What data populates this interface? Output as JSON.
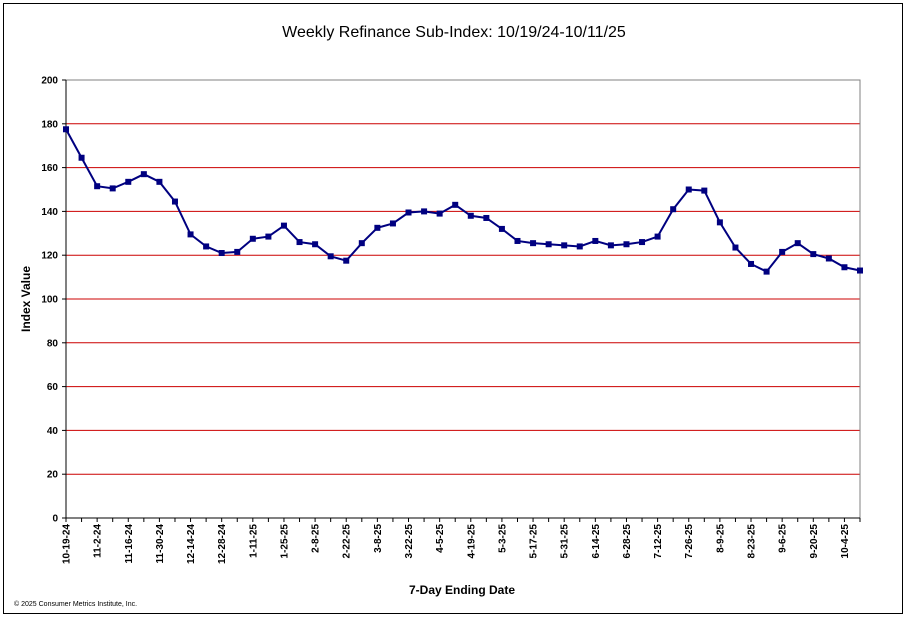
{
  "chart_data": {
    "type": "line",
    "title": "Weekly Refinance Sub-Index: 10/19/24-10/11/25",
    "xlabel": "7-Day Ending Date",
    "ylabel": "Index Value",
    "ylim": [
      0,
      200
    ],
    "y_ticks": [
      0,
      20,
      40,
      60,
      80,
      100,
      120,
      140,
      160,
      180,
      200
    ],
    "grid": true,
    "line_color": "#000080",
    "grid_color": "#cc0000",
    "x_tick_labels": [
      "10-19-24",
      "11-2-24",
      "11-16-24",
      "11-30-24",
      "12-14-24",
      "12-28-24",
      "1-11-25",
      "1-25-25",
      "2-8-25",
      "2-22-25",
      "3-8-25",
      "3-22-25",
      "4-5-25",
      "4-19-25",
      "5-3-25",
      "5-17-25",
      "5-31-25",
      "6-14-25",
      "6-28-25",
      "7-12-25",
      "7-26-25",
      "8-9-25",
      "8-23-25",
      "9-6-25",
      "9-20-25",
      "10-4-25"
    ],
    "series": [
      {
        "values": [
          177.5,
          164.5,
          151.5,
          150.5,
          153.5,
          157,
          153.5,
          144.5,
          129.5,
          124,
          121,
          121.5,
          127.5,
          128.5,
          133.5,
          126,
          125,
          119.5,
          117.5,
          125.5,
          132.5,
          134.5,
          139.5,
          140,
          139,
          143,
          138,
          137,
          132,
          126.5,
          125.5,
          125,
          124.5,
          124,
          126.5,
          124.5,
          125,
          126,
          128.5,
          141,
          150,
          149.5,
          135,
          123.5,
          116,
          112.5,
          121.5,
          125.5,
          120.5,
          118.5,
          114.5,
          113
        ]
      }
    ]
  },
  "copyright": "© 2025 Consumer Metrics Institute, Inc."
}
